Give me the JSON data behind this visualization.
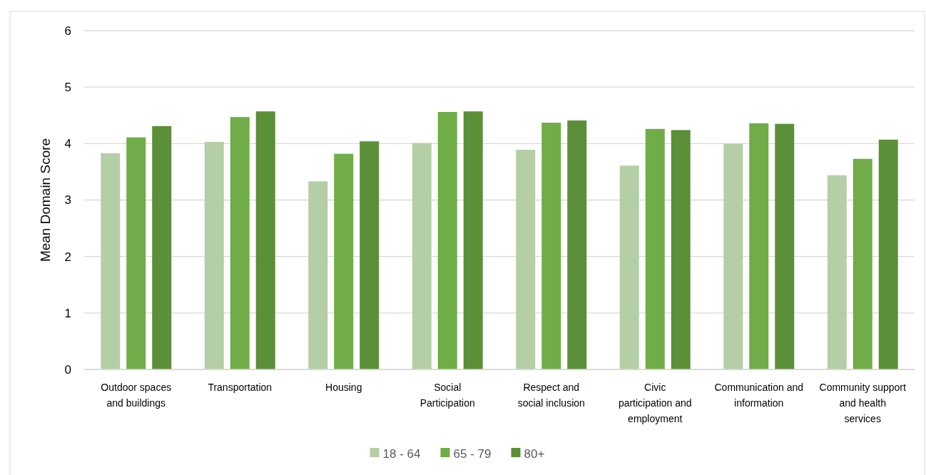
{
  "chart_data": {
    "type": "bar",
    "ylabel": "Mean Domain Score",
    "categories": [
      "Outdoor spaces and buildings",
      "Transportation",
      "Housing",
      "Social Participation",
      "Respect and social inclusion",
      "Civic participation and employment",
      "Communication and information",
      "Community support and health services"
    ],
    "series": [
      {
        "name": "18 - 64",
        "color": "#b4cea6",
        "values": [
          3.83,
          4.03,
          3.33,
          4.01,
          3.89,
          3.61,
          4.0,
          3.44
        ]
      },
      {
        "name": "65 - 79",
        "color": "#70ac47",
        "values": [
          4.11,
          4.47,
          3.82,
          4.56,
          4.37,
          4.26,
          4.36,
          3.73
        ]
      },
      {
        "name": "80+",
        "color": "#5b8f38",
        "values": [
          4.31,
          4.57,
          4.04,
          4.57,
          4.41,
          4.24,
          4.35,
          4.07
        ]
      }
    ],
    "ylim": [
      0,
      6
    ],
    "yticks": [
      0,
      1,
      2,
      3,
      4,
      5,
      6
    ],
    "grid": "y",
    "legend": "bottom"
  }
}
